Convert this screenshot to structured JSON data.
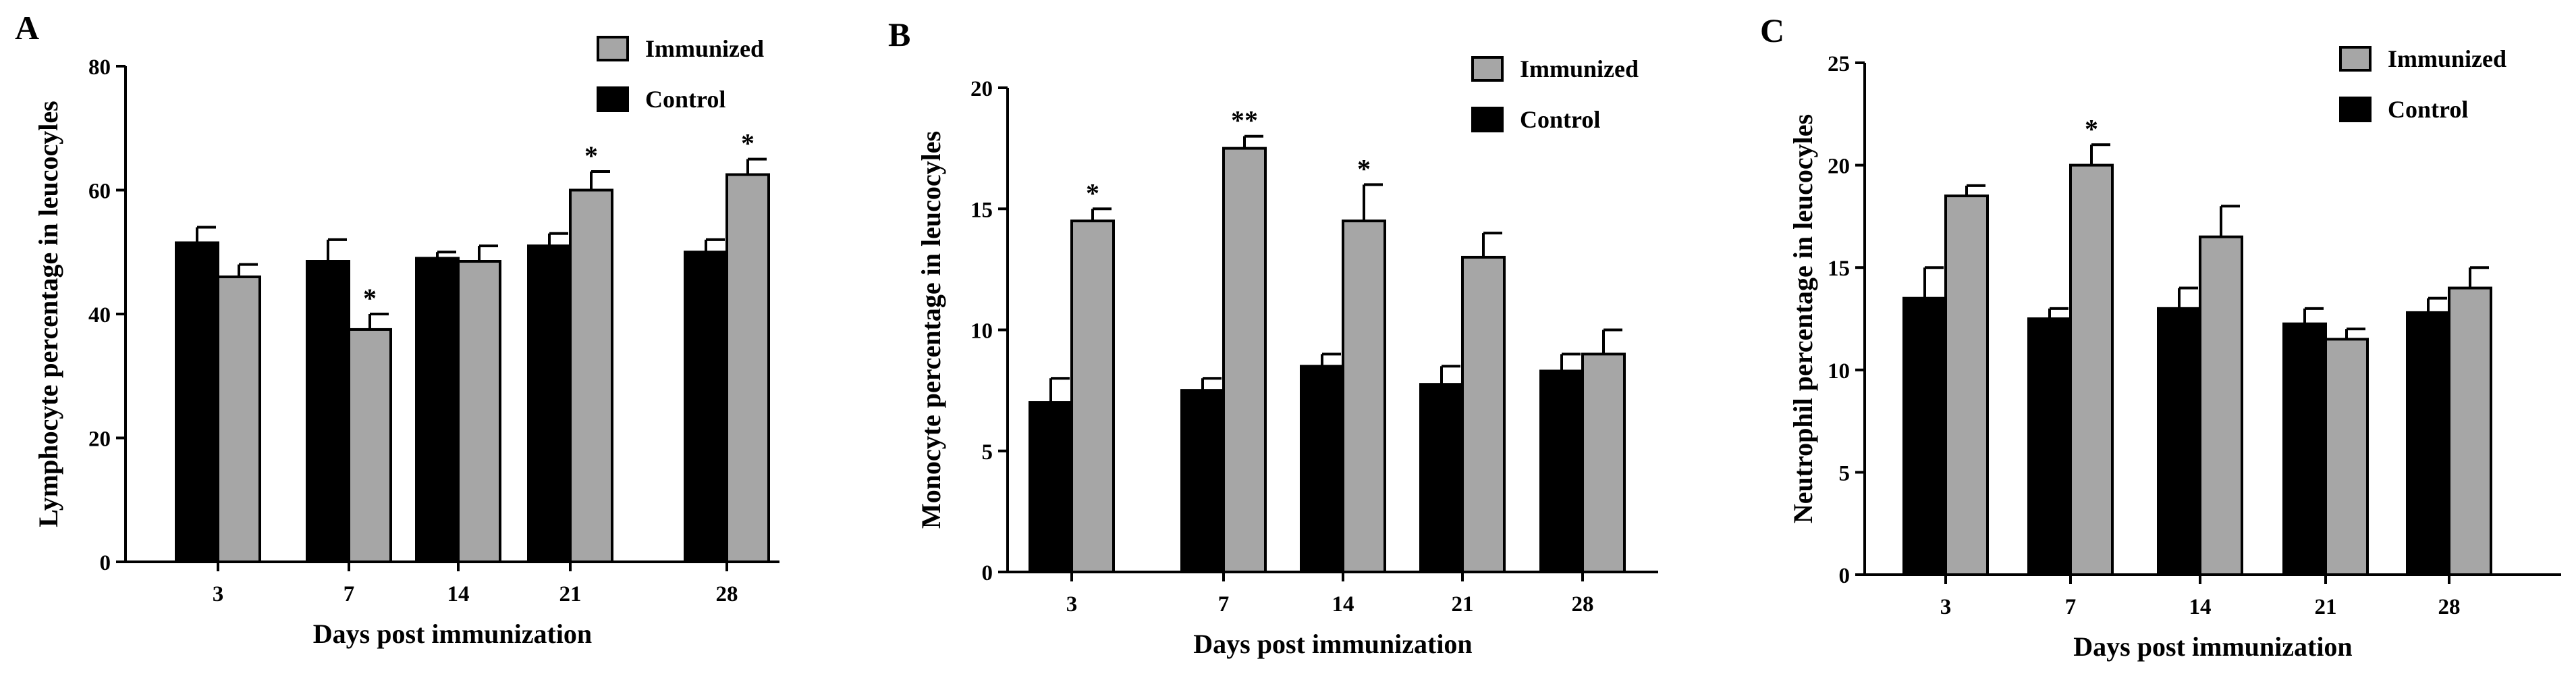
{
  "colors": {
    "control": "#000000",
    "immunized": "#a6a6a6",
    "axis": "#000000",
    "background": "#ffffff"
  },
  "chart_data": [
    {
      "type": "bar",
      "panel": "A",
      "xlabel": "Days post immunization",
      "ylabel": "Lymphocyte percentage in leucocyles",
      "ylim": [
        0,
        80
      ],
      "yticks": [
        0,
        20,
        40,
        60,
        80
      ],
      "categories": [
        "3",
        "7",
        "14",
        "21",
        "28"
      ],
      "legend": [
        "Immunized",
        "Control"
      ],
      "series": [
        {
          "name": "Control",
          "values": [
            51.5,
            48.5,
            49,
            51,
            50
          ],
          "errors": [
            2.5,
            3.5,
            1,
            2,
            2
          ],
          "significance": [
            "",
            "",
            "",
            "",
            ""
          ]
        },
        {
          "name": "Immunized",
          "values": [
            46,
            37.5,
            48.5,
            60,
            62.5
          ],
          "errors": [
            2,
            2.5,
            2.5,
            3,
            2.5
          ],
          "significance": [
            "",
            "*",
            "",
            "*",
            "*"
          ]
        }
      ]
    },
    {
      "type": "bar",
      "panel": "B",
      "xlabel": "Days post immunization",
      "ylabel": "Monocyte percentage in leucocyles",
      "ylim": [
        0,
        20
      ],
      "yticks": [
        0,
        5,
        10,
        15,
        20
      ],
      "categories": [
        "3",
        "7",
        "14",
        "21",
        "28"
      ],
      "legend": [
        "Immunized",
        "Control"
      ],
      "series": [
        {
          "name": "Control",
          "values": [
            7,
            7.5,
            8.5,
            7.75,
            8.3
          ],
          "errors": [
            1,
            0.5,
            0.5,
            0.75,
            0.7
          ],
          "significance": [
            "",
            "",
            "",
            "",
            ""
          ]
        },
        {
          "name": "Immunized",
          "values": [
            14.5,
            17.5,
            14.5,
            13,
            9
          ],
          "errors": [
            0.5,
            0.5,
            1.5,
            1,
            1
          ],
          "significance": [
            "*",
            "**",
            "*",
            "",
            ""
          ]
        }
      ]
    },
    {
      "type": "bar",
      "panel": "C",
      "xlabel": "Days post immunization",
      "ylabel": "Neutrophil percentage in leucocyles",
      "ylim": [
        0,
        25
      ],
      "yticks": [
        0,
        5,
        10,
        15,
        20,
        25
      ],
      "categories": [
        "3",
        "7",
        "14",
        "21",
        "28"
      ],
      "legend": [
        "Immunized",
        "Control"
      ],
      "series": [
        {
          "name": "Control",
          "values": [
            13.5,
            12.5,
            13,
            12.25,
            12.8
          ],
          "errors": [
            1.5,
            0.5,
            1,
            0.75,
            0.7
          ],
          "significance": [
            "",
            "",
            "",
            "",
            ""
          ]
        },
        {
          "name": "Immunized",
          "values": [
            18.5,
            20,
            16.5,
            11.5,
            14
          ],
          "errors": [
            0.5,
            1,
            1.5,
            0.5,
            1
          ],
          "significance": [
            "",
            "*",
            "",
            "",
            ""
          ]
        }
      ]
    }
  ]
}
